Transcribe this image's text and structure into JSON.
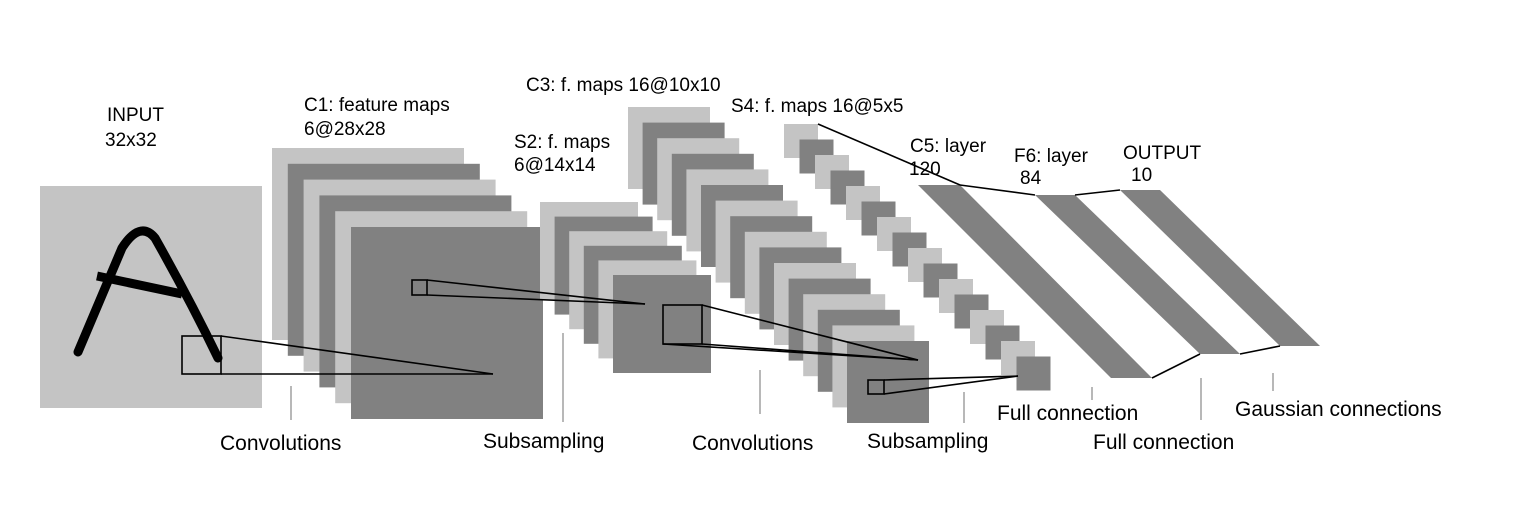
{
  "layers": {
    "input": {
      "title": "INPUT",
      "size": "32x32"
    },
    "c1": {
      "title": "C1: feature maps",
      "size": "6@28x28"
    },
    "s2": {
      "title": "S2: f. maps",
      "size": "6@14x14"
    },
    "c3": {
      "title": "C3: f. maps 16@10x10"
    },
    "s4": {
      "title": "S4: f. maps 16@5x5"
    },
    "c5": {
      "title": "C5: layer",
      "size": "120"
    },
    "f6": {
      "title": "F6: layer",
      "size": "84"
    },
    "output": {
      "title": "OUTPUT",
      "size": "10"
    }
  },
  "operations": {
    "conv1": "Convolutions",
    "sub1": "Subsampling",
    "conv2": "Convolutions",
    "sub2": "Subsampling",
    "full1": "Full connection",
    "full2": "Full connection",
    "gauss": "Gaussian connections"
  },
  "counts": {
    "c1_maps": 6,
    "s2_maps": 6,
    "c3_maps": 16,
    "s4_maps": 16
  },
  "colors": {
    "light": "#c4c4c4",
    "dark": "#818181",
    "input_bg": "#c4c4c4",
    "line": "#000000",
    "band": "#818181"
  }
}
